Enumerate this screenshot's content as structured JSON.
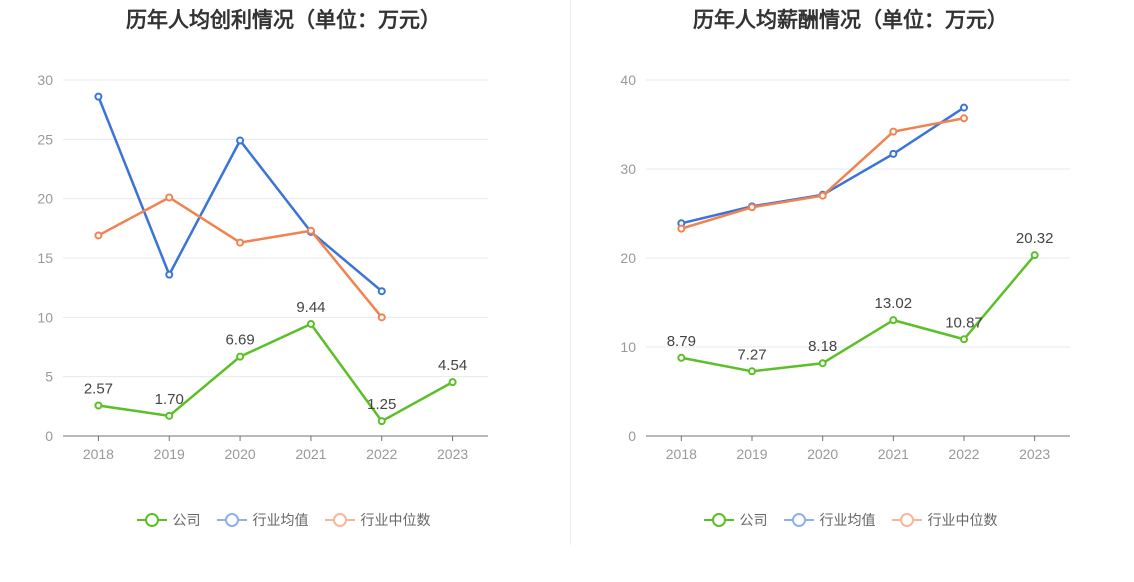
{
  "legend": {
    "company": "公司",
    "industry_avg": "行业均值",
    "industry_median": "行业中位数"
  },
  "colors": {
    "company": "#5ac026",
    "industry_avg": "#3a74d8",
    "industry_median": "#f0834f",
    "legend_avg": "#8fb0ec",
    "legend_median": "#f7b89a",
    "grid": "#e6e8ef",
    "axis": "#999999",
    "label": "#444444"
  },
  "chart_data": [
    {
      "type": "line",
      "title": "历年人均创利情况（单位：万元）",
      "categories": [
        "2018",
        "2019",
        "2020",
        "2021",
        "2022",
        "2023"
      ],
      "ylim": [
        0,
        30
      ],
      "yticks": [
        0,
        5,
        10,
        15,
        20,
        25,
        30
      ],
      "grid": true,
      "legend_position": "bottom-center",
      "series": [
        {
          "name": "公司",
          "key": "company",
          "values": [
            2.57,
            1.7,
            6.69,
            9.44,
            1.25,
            4.54
          ],
          "labels": [
            "2.57",
            "1.70",
            "6.69",
            "9.44",
            "1.25",
            "4.54"
          ]
        },
        {
          "name": "行业均值",
          "key": "industry_avg",
          "values": [
            28.6,
            13.6,
            24.9,
            17.2,
            12.2,
            null
          ]
        },
        {
          "name": "行业中位数",
          "key": "industry_median",
          "values": [
            16.9,
            20.1,
            16.3,
            17.3,
            10.0,
            null
          ]
        }
      ]
    },
    {
      "type": "line",
      "title": "历年人均薪酬情况（单位：万元）",
      "categories": [
        "2018",
        "2019",
        "2020",
        "2021",
        "2022",
        "2023"
      ],
      "ylim": [
        0,
        40
      ],
      "yticks": [
        0,
        10,
        20,
        30,
        40
      ],
      "grid": true,
      "legend_position": "bottom-center",
      "series": [
        {
          "name": "公司",
          "key": "company",
          "values": [
            8.79,
            7.27,
            8.18,
            13.02,
            10.87,
            20.32
          ],
          "labels": [
            "8.79",
            "7.27",
            "8.18",
            "13.02",
            "10.87",
            "20.32"
          ]
        },
        {
          "name": "行业均值",
          "key": "industry_avg",
          "values": [
            23.9,
            25.8,
            27.1,
            31.7,
            36.9,
            null
          ]
        },
        {
          "name": "行业中位数",
          "key": "industry_median",
          "values": [
            23.3,
            25.7,
            27.0,
            34.2,
            35.7,
            null
          ]
        }
      ]
    }
  ]
}
